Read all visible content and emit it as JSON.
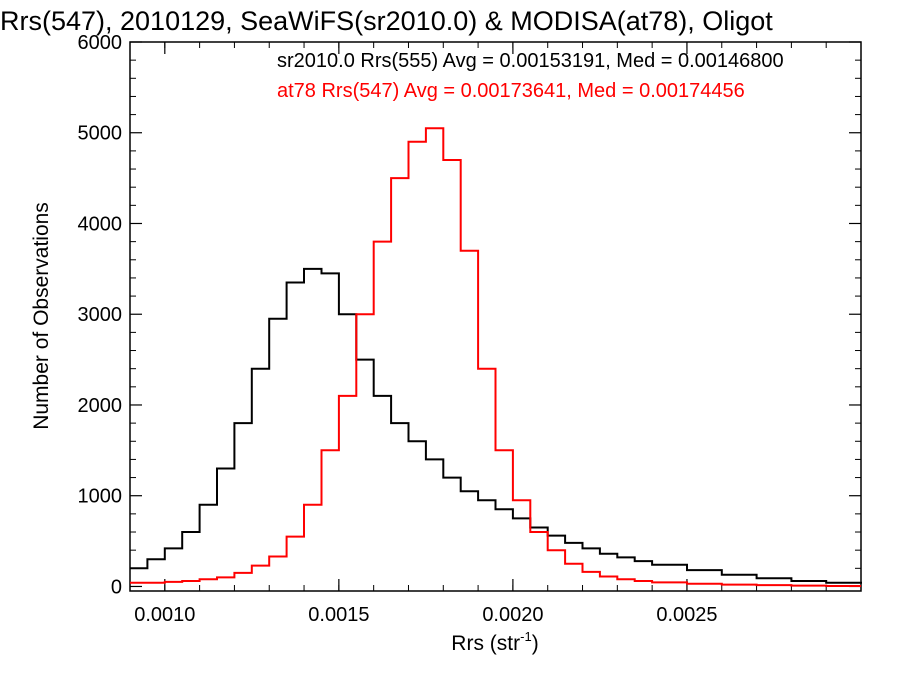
{
  "chart_data": {
    "type": "line",
    "title": "Rrs(547), 2010129, SeaWiFS(sr2010.0) & MODISA(at78), Oligot",
    "xlabel": "Rrs (str",
    "xlabel_sup": "-1",
    "xlabel_close": ")",
    "ylabel": "Number of Observations",
    "xlim": [
      0.0009,
      0.003
    ],
    "ylim": [
      -50,
      6000
    ],
    "x_ticks": [
      0.001,
      0.0015,
      0.002,
      0.0025
    ],
    "x_tick_labels": [
      "0.0010",
      "0.0015",
      "0.0020",
      "0.0025"
    ],
    "y_ticks": [
      0,
      1000,
      2000,
      3000,
      4000,
      5000,
      6000
    ],
    "y_tick_labels": [
      "0",
      "1000",
      "2000",
      "3000",
      "4000",
      "5000",
      "6000"
    ],
    "grid": false,
    "legend_position": "top",
    "series": [
      {
        "name": "sr2010.0 Rrs(555) Avg = 0.00153191, Med = 0.00146800",
        "color": "#000000",
        "style": "step",
        "x": [
          0.0009,
          0.00095,
          0.001,
          0.00105,
          0.0011,
          0.00115,
          0.0012,
          0.00125,
          0.0013,
          0.00135,
          0.0014,
          0.00145,
          0.0015,
          0.00155,
          0.0016,
          0.00165,
          0.0017,
          0.00175,
          0.0018,
          0.00185,
          0.0019,
          0.00195,
          0.002,
          0.00205,
          0.0021,
          0.00215,
          0.0022,
          0.00225,
          0.0023,
          0.00235,
          0.0024,
          0.0025,
          0.0026,
          0.0027,
          0.0028,
          0.0029,
          0.003
        ],
        "values": [
          200,
          300,
          420,
          600,
          900,
          1300,
          1800,
          2400,
          2950,
          3350,
          3500,
          3450,
          3000,
          2500,
          2100,
          1800,
          1600,
          1400,
          1200,
          1050,
          950,
          850,
          750,
          650,
          560,
          480,
          420,
          360,
          320,
          280,
          240,
          180,
          130,
          90,
          60,
          40,
          30
        ]
      },
      {
        "name": "at78 Rrs(547) Avg = 0.00173641, Med = 0.00174456",
        "color": "#ff0000",
        "style": "step",
        "x": [
          0.0009,
          0.00095,
          0.001,
          0.00105,
          0.0011,
          0.00115,
          0.0012,
          0.00125,
          0.0013,
          0.00135,
          0.0014,
          0.00145,
          0.0015,
          0.00155,
          0.0016,
          0.00165,
          0.0017,
          0.00175,
          0.0018,
          0.00185,
          0.0019,
          0.00195,
          0.002,
          0.00205,
          0.0021,
          0.00215,
          0.0022,
          0.00225,
          0.0023,
          0.00235,
          0.0024,
          0.0025,
          0.0026,
          0.0027,
          0.0028,
          0.0029,
          0.003
        ],
        "values": [
          40,
          40,
          50,
          60,
          80,
          100,
          150,
          230,
          330,
          550,
          900,
          1500,
          2100,
          3000,
          3800,
          4500,
          4900,
          5050,
          4700,
          3700,
          2400,
          1500,
          950,
          600,
          400,
          250,
          160,
          110,
          80,
          60,
          45,
          30,
          20,
          15,
          10,
          5,
          5
        ]
      }
    ]
  }
}
